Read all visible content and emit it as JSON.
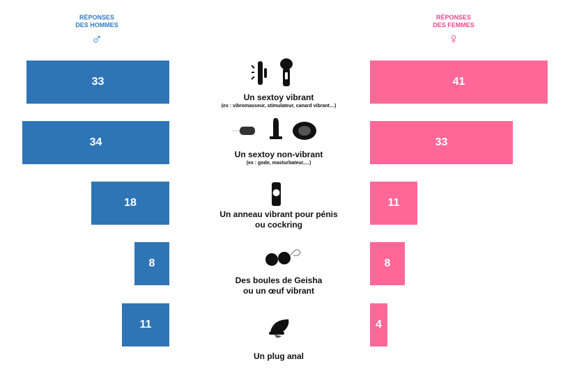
{
  "headers": {
    "men_line1": "RÉPONSES",
    "men_line2": "DES HOMMES",
    "women_line1": "RÉPONSES",
    "women_line2": "DES FEMMES"
  },
  "colors": {
    "men": "#2f75b6",
    "women": "#fd6898",
    "men_text": "#2f7cc1",
    "women_text": "#e8468e"
  },
  "categories": [
    {
      "title": "Un sextoy vibrant",
      "subtitle": "(ex : vibromasseur, stimulateur, canard vibrant…)",
      "icon": "vibrator-icon"
    },
    {
      "title": "Un sextoy non-vibrant",
      "subtitle": "(ex : gode, masturbateur,…)",
      "icon": "dildo-icon"
    },
    {
      "title": "Un anneau vibrant pour pénis",
      "title2": "ou cockring",
      "icon": "cockring-icon"
    },
    {
      "title": "Des boules de Geisha",
      "title2": "ou un œuf vibrant",
      "icon": "geisha-balls-icon"
    },
    {
      "title": "Un plug anal",
      "icon": "plug-icon"
    }
  ],
  "chart_data": {
    "type": "bar",
    "categories": [
      "Un sextoy vibrant",
      "Un sextoy non-vibrant",
      "Un anneau vibrant pour pénis ou cockring",
      "Des boules de Geisha ou un œuf vibrant",
      "Un plug anal"
    ],
    "series": [
      {
        "name": "RÉPONSES DES HOMMES",
        "values": [
          33,
          34,
          18,
          8,
          11
        ]
      },
      {
        "name": "RÉPONSES DES FEMMES",
        "values": [
          41,
          33,
          11,
          8,
          4
        ]
      }
    ],
    "scale_max": 41
  }
}
